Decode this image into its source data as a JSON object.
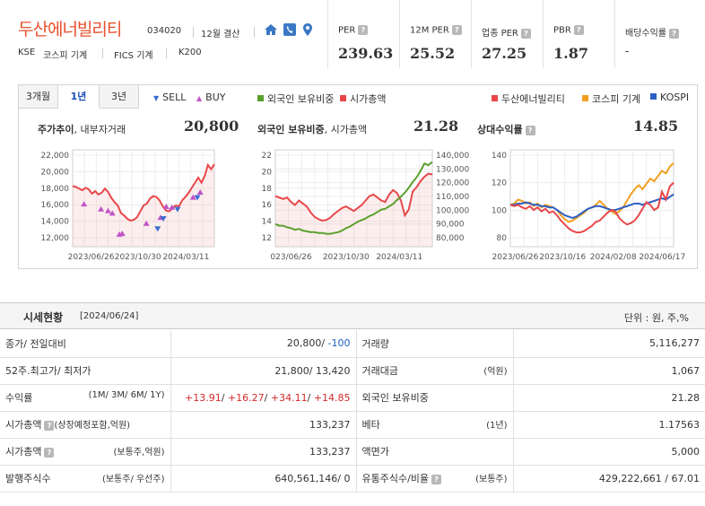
{
  "header": {
    "company_name": "두산에너빌리티",
    "code": "034020",
    "settlement": "12월 결산",
    "icons": [
      "home-icon",
      "phone-icon",
      "location-pin-icon"
    ],
    "market": "KSE",
    "index_group": "코스피 기계",
    "fics": "FICS 기계",
    "index": "K200"
  },
  "kpis": [
    {
      "label": "PER",
      "value": "239.63"
    },
    {
      "label": "12M PER",
      "value": "25.52"
    },
    {
      "label": "업종 PER",
      "value": "27.25"
    },
    {
      "label": "PBR",
      "value": "1.87"
    },
    {
      "label": "배당수익률",
      "value": "-"
    }
  ],
  "chart_panel": {
    "tabs": [
      {
        "label": "3개월",
        "active": false
      },
      {
        "label": "1년",
        "active": true
      },
      {
        "label": "3년",
        "active": false
      }
    ],
    "legend_price": [
      {
        "label": "SELL",
        "color": "#3b6fd0"
      },
      {
        "label": "BUY",
        "color": "#c054c8"
      }
    ],
    "legend_foreign": [
      {
        "label": "외국인 보유비중",
        "color": "#5aa02c"
      },
      {
        "label": "시가총액",
        "color": "#e8474a"
      }
    ],
    "legend_relative": [
      {
        "label": "두산에너빌리티",
        "color": "#e8474a"
      },
      {
        "label": "코스피 기계",
        "color": "#f0a020"
      },
      {
        "label": "KOSPI",
        "color": "#2c5fc4"
      }
    ],
    "price_title": "주가추이",
    "price_subtitle": ", 내부자거래",
    "price_value": "20,800",
    "foreign_title": "외국인 보유비중",
    "foreign_subtitle": ", 시가총액",
    "foreign_value": "21.28",
    "relative_title": "상대수익률",
    "relative_value": "14.85"
  },
  "chart_data": [
    {
      "type": "line",
      "title": "주가추이, 내부자거래",
      "ylim": [
        11000,
        22500
      ],
      "y_ticks": [
        "22,000",
        "20,000",
        "18,000",
        "16,000",
        "14,000",
        "12,000"
      ],
      "x_ticks": [
        "2023/06/26",
        "2023/10/30",
        "2024/03/11"
      ],
      "series": [
        {
          "name": "주가",
          "color": "#e8474a",
          "values": [
            18200,
            18100,
            17900,
            17700,
            18000,
            17800,
            17300,
            17600,
            17200,
            17400,
            17900,
            17500,
            16800,
            16300,
            15900,
            15000,
            14700,
            14300,
            14100,
            14200,
            14500,
            15200,
            15900,
            16100,
            16700,
            17000,
            16900,
            16500,
            15800,
            15300,
            15200,
            15600,
            15900,
            15800,
            16500,
            16900,
            17400,
            18000,
            18600,
            19200,
            18600,
            19400,
            20700,
            20200,
            20800
          ]
        }
      ],
      "markers_buy_color": "#c054c8",
      "markers_sell_color": "#3b6fd0"
    },
    {
      "type": "line",
      "title": "외국인 보유비중, 시가총액",
      "ylim_left": [
        11,
        23
      ],
      "ylim_right": [
        80000,
        145000
      ],
      "y_ticks_left": [
        "22",
        "20",
        "18",
        "16",
        "14",
        "12"
      ],
      "y_ticks_right": [
        "140,000",
        "130,000",
        "120,000",
        "110,000",
        "100,000",
        "90,000",
        "80,000"
      ],
      "x_ticks": [
        "023/06/26",
        "2023/10/30",
        "2024/03/11"
      ],
      "series": [
        {
          "name": "외국인 보유비중",
          "color": "#5aa02c",
          "values": [
            13.8,
            13.6,
            13.6,
            13.4,
            13.3,
            13.1,
            13.2,
            13.0,
            12.9,
            12.8,
            12.8,
            12.7,
            12.7,
            12.6,
            12.6,
            12.7,
            12.8,
            13.0,
            13.3,
            13.5,
            13.8,
            14.1,
            14.3,
            14.5,
            14.8,
            15.0,
            15.3,
            15.6,
            15.7,
            16.0,
            16.3,
            16.8,
            17.2,
            17.7,
            18.3,
            19.0,
            19.6,
            20.4,
            21.3,
            21.1,
            21.5
          ]
        },
        {
          "name": "시가총액",
          "color": "#e8474a",
          "values": [
            114000,
            113000,
            112000,
            113000,
            110000,
            108000,
            111000,
            109000,
            107000,
            103000,
            100000,
            98500,
            97500,
            98000,
            99500,
            102000,
            104000,
            106000,
            107000,
            105500,
            104000,
            106000,
            108000,
            111000,
            114000,
            115000,
            113000,
            111000,
            110000,
            115000,
            118000,
            116000,
            111000,
            101000,
            105000,
            117000,
            120000,
            124000,
            127000,
            129000,
            128500
          ]
        }
      ]
    },
    {
      "type": "line",
      "title": "상대수익률",
      "ylim": [
        68,
        142
      ],
      "y_ticks": [
        "140",
        "120",
        "100",
        "80"
      ],
      "x_ticks": [
        "2023/06/26",
        "2023/10/16",
        "2024/02/08",
        "2024/06/17"
      ],
      "series": [
        {
          "name": "두산에너빌리티",
          "color": "#e8474a",
          "values": [
            100,
            99,
            100,
            98,
            97,
            99,
            96,
            98,
            95,
            97,
            94,
            95,
            92,
            88,
            85,
            82,
            80,
            79,
            79,
            80,
            82,
            84,
            87,
            88,
            91,
            94,
            96,
            95,
            90,
            87,
            85,
            86,
            88,
            92,
            97,
            102,
            100,
            96,
            98,
            110,
            104,
            114,
            117
          ]
        },
        {
          "name": "코스피 기계",
          "color": "#f0a020",
          "values": [
            100,
            101,
            104,
            103,
            101,
            102,
            99,
            101,
            98,
            100,
            99,
            98,
            96,
            92,
            89,
            87,
            88,
            90,
            92,
            94,
            97,
            98,
            100,
            103,
            100,
            97,
            95,
            93,
            95,
            98,
            103,
            108,
            112,
            115,
            112,
            116,
            120,
            118,
            122,
            126,
            124,
            129,
            132
          ]
        },
        {
          "name": "KOSPI",
          "color": "#2c5fc4",
          "values": [
            100,
            100,
            101,
            101,
            102,
            101,
            100,
            100,
            99,
            99,
            98,
            98,
            96,
            94,
            92,
            91,
            90,
            91,
            93,
            95,
            97,
            98,
            99,
            99,
            98,
            97,
            96,
            96,
            97,
            98,
            99,
            100,
            101,
            101,
            100,
            101,
            102,
            103,
            104,
            105,
            104,
            106,
            108
          ]
        }
      ]
    }
  ],
  "market_table": {
    "title": "시세현황",
    "date": "[2024/06/24]",
    "unit": "단위 : 원, 주,%",
    "rows": [
      {
        "label": "종가/ 전일대비",
        "sub": "",
        "value_main": "20,800/ ",
        "value_change": "-100",
        "label2": "거래량",
        "sub2": "",
        "value2": "5,116,277"
      },
      {
        "label": "52주.최고가/ 최저가",
        "sub": "",
        "value": "21,800/ 13,420",
        "label2": "거래대금",
        "sub2": "(억원)",
        "value2": "1,067"
      },
      {
        "label": "수익률",
        "sub": "(1M/ 3M/ 6M/ 1Y)",
        "returns": [
          "+13.91",
          "+16.27",
          "+34.11",
          "+14.85"
        ],
        "label2": "외국인 보유비중",
        "sub2": "",
        "value2": "21.28"
      },
      {
        "label": "시가총액",
        "sub": "(상장예정포함,억원)",
        "value": "133,237",
        "label2": "베타",
        "sub2": "(1년)",
        "value2": "1.17563"
      },
      {
        "label": "시가총액",
        "sub": "(보통주,억원)",
        "value": "133,237",
        "label2": "액면가",
        "sub2": "",
        "value2": "5,000"
      },
      {
        "label": "발행주식수",
        "sub": "(보통주/ 우선주)",
        "value": "640,561,146/ 0",
        "label2": "유통주식수/비율",
        "sub2": "(보통주)",
        "value2": "429,222,661 / 67.01"
      }
    ]
  }
}
